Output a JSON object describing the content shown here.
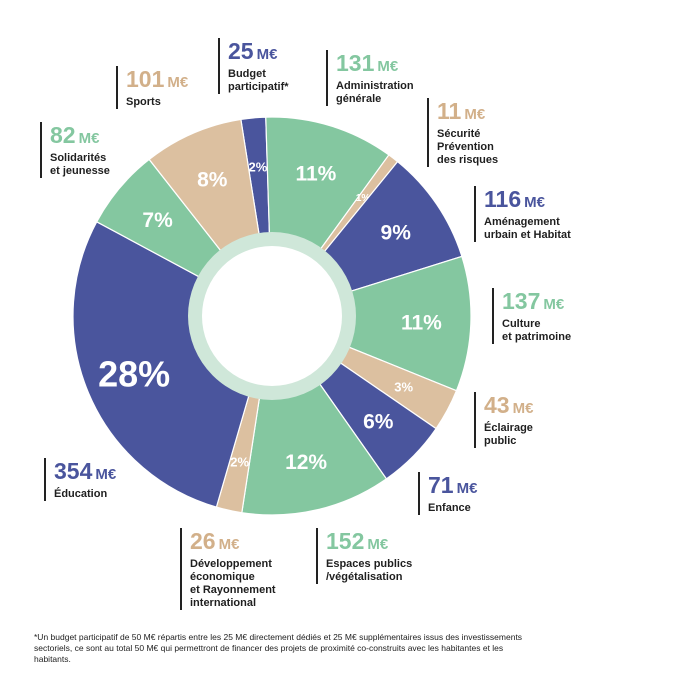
{
  "colors": {
    "blue": "#4a559d",
    "green": "#84c7a0",
    "beige": "#dcc0a0",
    "ring": "#cfe7d9"
  },
  "chart_data": {
    "type": "pie",
    "variant": "donut",
    "slices": [
      {
        "key": "budget",
        "percent_label": "2%",
        "value": 25,
        "amount": "25",
        "unit": "M€",
        "label": "Budget\nparticipatif*",
        "color": "blue"
      },
      {
        "key": "admin",
        "percent_label": "11%",
        "value": 131,
        "amount": "131",
        "unit": "M€",
        "label": "Administration\ngénérale",
        "color": "green"
      },
      {
        "key": "securite",
        "percent_label": "1%",
        "value": 11,
        "amount": "11",
        "unit": "M€",
        "label": "Sécurité\nPrévention\ndes risques",
        "color": "beige"
      },
      {
        "key": "amenagement",
        "percent_label": "9%",
        "value": 116,
        "amount": "116",
        "unit": "M€",
        "label": "Aménagement\nurbain et Habitat",
        "color": "blue"
      },
      {
        "key": "culture",
        "percent_label": "11%",
        "value": 137,
        "amount": "137",
        "unit": "M€",
        "label": "Culture\net patrimoine",
        "color": "green"
      },
      {
        "key": "eclairage",
        "percent_label": "3%",
        "value": 43,
        "amount": "43",
        "unit": "M€",
        "label": "Éclairage\npublic",
        "color": "beige"
      },
      {
        "key": "enfance",
        "percent_label": "6%",
        "value": 71,
        "amount": "71",
        "unit": "M€",
        "label": "Enfance",
        "color": "blue"
      },
      {
        "key": "espaces",
        "percent_label": "12%",
        "value": 152,
        "amount": "152",
        "unit": "M€",
        "label": "Espaces publics\n/végétalisation",
        "color": "green"
      },
      {
        "key": "developpement",
        "percent_label": "2%",
        "value": 26,
        "amount": "26",
        "unit": "M€",
        "label": "Développement\néconomique\net Rayonnement\ninternational",
        "color": "beige"
      },
      {
        "key": "education",
        "percent_label": "28%",
        "value": 354,
        "amount": "354",
        "unit": "M€",
        "label": "Éducation",
        "color": "blue"
      },
      {
        "key": "solidarites",
        "percent_label": "7%",
        "value": 82,
        "amount": "82",
        "unit": "M€",
        "label": "Solidarités\net jeunesse",
        "color": "green"
      },
      {
        "key": "sports",
        "percent_label": "8%",
        "value": 101,
        "amount": "101",
        "unit": "M€",
        "label": "Sports",
        "color": "beige"
      }
    ]
  },
  "footnote": "*Un budget participatif de 50 M€ répartis entre les 25 M€ directement dédiés et 25 M€ supplémentaires issus des investissements sectoriels, ce sont au total 50 M€ qui permettront de financer des projets de proximité co-construits avec les habitantes et les habitants."
}
